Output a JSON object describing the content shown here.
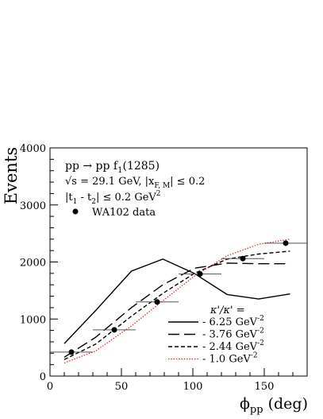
{
  "chart_data": {
    "type": "line",
    "title": "",
    "xlabel": "ϕ_pp (deg)",
    "ylabel": "Events",
    "xlim": [
      0,
      180
    ],
    "ylim": [
      0,
      4000
    ],
    "x_ticks": [
      0,
      50,
      100,
      150
    ],
    "y_ticks": [
      0,
      1000,
      2000,
      3000,
      4000
    ],
    "annotations": {
      "process": "pp → pp f_1(1285)",
      "energy": "√s = 29.1 GeV,  |x_F, M| ≤ 0.2",
      "t_cut": "|t_1 - t_2| ≤ 0.2 GeV^2",
      "data_label": "WA102 data",
      "legend_header": "κ'/κ' ="
    },
    "data_points": [
      {
        "x": 15,
        "y": 420,
        "xerr": 15
      },
      {
        "x": 45,
        "y": 810,
        "xerr": 15
      },
      {
        "x": 75,
        "y": 1300,
        "xerr": 15
      },
      {
        "x": 105,
        "y": 1790,
        "xerr": 15
      },
      {
        "x": 135,
        "y": 2060,
        "xerr": 15
      },
      {
        "x": 165,
        "y": 2330,
        "xerr": 15
      }
    ],
    "series": [
      {
        "name": "- 6.25 GeV^-2",
        "style": "solid",
        "color": "#000000",
        "x": [
          10,
          32,
          57,
          79,
          101,
          124,
          146,
          168
        ],
        "y": [
          570,
          1150,
          1840,
          2050,
          1800,
          1430,
          1350,
          1440
        ]
      },
      {
        "name": "- 3.76 GeV^-2",
        "style": "longdash",
        "color": "#000000",
        "x": [
          10,
          32,
          57,
          79,
          101,
          124,
          146,
          168
        ],
        "y": [
          330,
          680,
          1200,
          1600,
          1890,
          1980,
          1970,
          1970
        ]
      },
      {
        "name": "- 2.44 GeV^-2",
        "style": "shortdash",
        "color": "#000000",
        "x": [
          10,
          32,
          57,
          79,
          101,
          124,
          146,
          168
        ],
        "y": [
          290,
          560,
          1050,
          1450,
          1800,
          2050,
          2140,
          2190
        ]
      },
      {
        "name": "- 1.0 GeV^-2",
        "style": "dotted",
        "color": "#e0202a",
        "x": [
          10,
          32,
          57,
          79,
          101,
          124,
          146,
          168
        ],
        "y": [
          230,
          440,
          880,
          1320,
          1750,
          2110,
          2310,
          2400
        ]
      }
    ]
  }
}
